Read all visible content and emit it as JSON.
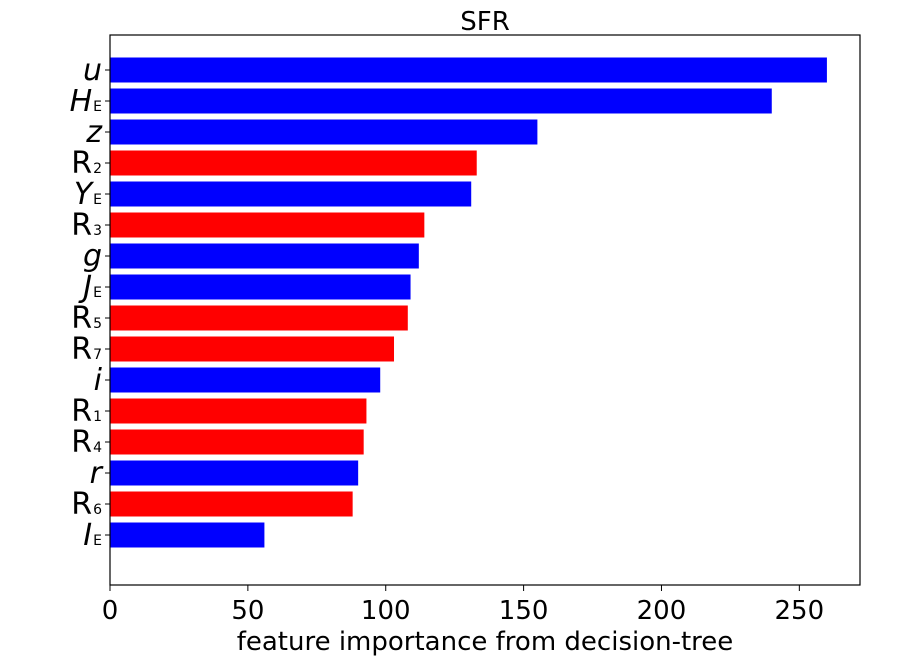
{
  "chart_data": {
    "type": "bar",
    "orientation": "horizontal",
    "title": "SFR",
    "xlabel": "feature importance from decision-tree",
    "ylabel": "",
    "xlim": [
      0,
      272
    ],
    "xticks": [
      0,
      50,
      100,
      150,
      200,
      250
    ],
    "grid": false,
    "categories": [
      {
        "main": "u",
        "sub": "",
        "italic": true
      },
      {
        "main": "H",
        "sub": "E",
        "italic": true
      },
      {
        "main": "z",
        "sub": "",
        "italic": true
      },
      {
        "main": "R",
        "sub": "2",
        "italic": false
      },
      {
        "main": "Y",
        "sub": "E",
        "italic": true
      },
      {
        "main": "R",
        "sub": "3",
        "italic": false
      },
      {
        "main": "g",
        "sub": "",
        "italic": true
      },
      {
        "main": "J",
        "sub": "E",
        "italic": true
      },
      {
        "main": "R",
        "sub": "5",
        "italic": false
      },
      {
        "main": "R",
        "sub": "7",
        "italic": false
      },
      {
        "main": "i",
        "sub": "",
        "italic": true
      },
      {
        "main": "R",
        "sub": "1",
        "italic": false
      },
      {
        "main": "R",
        "sub": "4",
        "italic": false
      },
      {
        "main": "r",
        "sub": "",
        "italic": true
      },
      {
        "main": "R",
        "sub": "6",
        "italic": false
      },
      {
        "main": "I",
        "sub": "E",
        "italic": true
      }
    ],
    "values": [
      260,
      240,
      155,
      133,
      131,
      114,
      112,
      109,
      108,
      103,
      98,
      93,
      92,
      90,
      88,
      56
    ],
    "colors": [
      "#0000ff",
      "#0000ff",
      "#0000ff",
      "#ff0000",
      "#0000ff",
      "#ff0000",
      "#0000ff",
      "#0000ff",
      "#ff0000",
      "#ff0000",
      "#0000ff",
      "#ff0000",
      "#ff0000",
      "#0000ff",
      "#ff0000",
      "#0000ff"
    ]
  }
}
